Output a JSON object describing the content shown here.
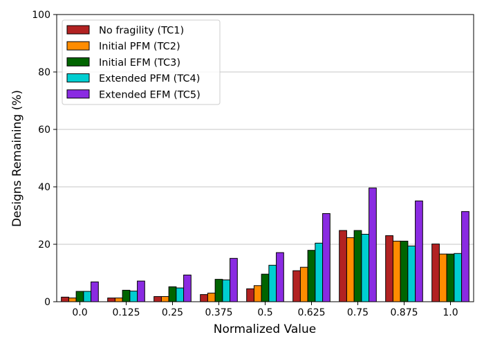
{
  "chart_data": {
    "type": "bar",
    "xlabel": "Normalized Value",
    "ylabel": "Designs Remaining (%)",
    "ylim": [
      0,
      100
    ],
    "yticks": [
      0,
      20,
      40,
      60,
      80,
      100
    ],
    "grid": "y-major",
    "legend_position": "top-left",
    "categories": [
      "0.0",
      "0.125",
      "0.25",
      "0.375",
      "0.5",
      "0.625",
      "0.75",
      "0.875",
      "1.0"
    ],
    "series": [
      {
        "name": "No fragility (TC1)",
        "color": "#b22222",
        "values": [
          1.6,
          1.3,
          1.8,
          2.5,
          4.5,
          10.8,
          24.8,
          23.0,
          20.1
        ]
      },
      {
        "name": "Initial PFM (TC2)",
        "color": "#ff8c00",
        "values": [
          1.3,
          1.3,
          1.8,
          3.0,
          5.6,
          12.0,
          22.3,
          21.1,
          16.6
        ]
      },
      {
        "name": "Initial EFM (TC3)",
        "color": "#006400",
        "values": [
          3.6,
          4.0,
          5.2,
          7.8,
          9.6,
          17.9,
          24.8,
          21.1,
          16.6
        ]
      },
      {
        "name": "Extended PFM (TC4)",
        "color": "#00ced1",
        "values": [
          3.6,
          3.7,
          4.8,
          7.6,
          12.7,
          20.4,
          23.5,
          19.4,
          16.8
        ]
      },
      {
        "name": "Extended EFM (TC5)",
        "color": "#8a2be2",
        "values": [
          6.9,
          7.2,
          9.3,
          15.1,
          17.1,
          30.7,
          39.6,
          35.1,
          31.4
        ]
      }
    ]
  }
}
